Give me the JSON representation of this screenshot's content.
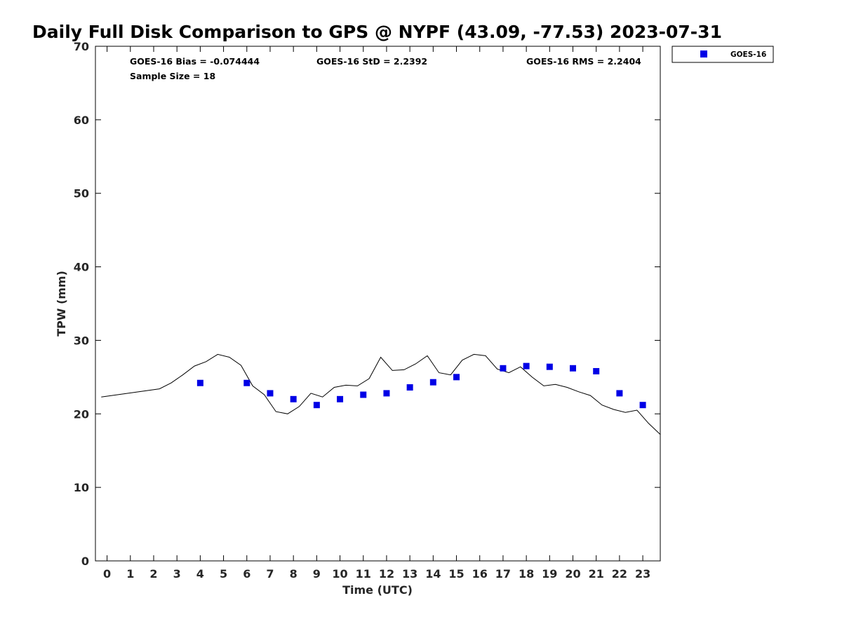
{
  "chart_data": {
    "type": "scatter",
    "title": "Daily Full Disk Comparison to GPS @ NYPF (43.09, -77.53) 2023-07-31",
    "xlabel": "Time (UTC)",
    "ylabel": "TPW (mm)",
    "xlim": [
      -0.5,
      23.75
    ],
    "ylim": [
      0,
      70
    ],
    "xticks": [
      "0",
      "1",
      "2",
      "3",
      "4",
      "5",
      "6",
      "7",
      "8",
      "9",
      "10",
      "11",
      "12",
      "13",
      "14",
      "15",
      "16",
      "17",
      "18",
      "19",
      "20",
      "21",
      "22",
      "23"
    ],
    "yticks": [
      "0",
      "10",
      "20",
      "30",
      "40",
      "50",
      "60",
      "70"
    ],
    "grid": false,
    "legend_position": "top-right, outside plot",
    "stats": {
      "bias": "GOES-16 Bias = -0.074444",
      "std": "GOES-16 StD = 2.2392",
      "rms": "GOES-16 RMS = 2.2404",
      "sample": "Sample Size = 18"
    },
    "series": [
      {
        "name": "GOES-16",
        "kind": "scatter",
        "marker": "square",
        "color": "#0000e6",
        "points": [
          [
            4,
            24.2
          ],
          [
            6,
            24.2
          ],
          [
            7,
            22.8
          ],
          [
            8,
            22.0
          ],
          [
            9,
            21.2
          ],
          [
            10,
            22.0
          ],
          [
            11,
            22.6
          ],
          [
            12,
            22.8
          ],
          [
            13,
            23.6
          ],
          [
            14,
            24.3
          ],
          [
            15,
            25.0
          ],
          [
            17,
            26.2
          ],
          [
            18,
            26.5
          ],
          [
            19,
            26.4
          ],
          [
            20,
            26.2
          ],
          [
            21,
            25.8
          ],
          [
            22,
            22.8
          ],
          [
            23,
            21.2
          ]
        ]
      },
      {
        "kind": "line",
        "color": "#000000",
        "points": [
          [
            -0.25,
            22.3
          ],
          [
            2.25,
            23.4
          ],
          [
            2.75,
            24.2
          ],
          [
            3.25,
            25.3
          ],
          [
            3.75,
            26.5
          ],
          [
            4.25,
            27.1
          ],
          [
            4.75,
            28.1
          ],
          [
            5.25,
            27.7
          ],
          [
            5.75,
            26.6
          ],
          [
            6.25,
            23.8
          ],
          [
            6.75,
            22.6
          ],
          [
            7.25,
            20.3
          ],
          [
            7.75,
            20.0
          ],
          [
            8.25,
            21.0
          ],
          [
            8.75,
            22.8
          ],
          [
            9.25,
            22.3
          ],
          [
            9.75,
            23.6
          ],
          [
            10.25,
            23.9
          ],
          [
            10.75,
            23.8
          ],
          [
            11.25,
            24.8
          ],
          [
            11.75,
            27.7
          ],
          [
            12.25,
            25.9
          ],
          [
            12.75,
            26.0
          ],
          [
            13.25,
            26.8
          ],
          [
            13.75,
            27.9
          ],
          [
            14.25,
            25.6
          ],
          [
            14.75,
            25.3
          ],
          [
            15.25,
            27.3
          ],
          [
            15.75,
            28.1
          ],
          [
            16.25,
            27.9
          ],
          [
            16.75,
            26.1
          ],
          [
            17.25,
            25.6
          ],
          [
            17.75,
            26.4
          ],
          [
            18.25,
            25.0
          ],
          [
            18.75,
            23.8
          ],
          [
            19.25,
            24.0
          ],
          [
            19.75,
            23.6
          ],
          [
            20.25,
            23.0
          ],
          [
            20.75,
            22.5
          ],
          [
            21.25,
            21.2
          ],
          [
            21.75,
            20.6
          ],
          [
            22.25,
            20.2
          ],
          [
            22.75,
            20.5
          ],
          [
            23.25,
            18.7
          ],
          [
            23.75,
            17.2
          ]
        ]
      }
    ]
  }
}
